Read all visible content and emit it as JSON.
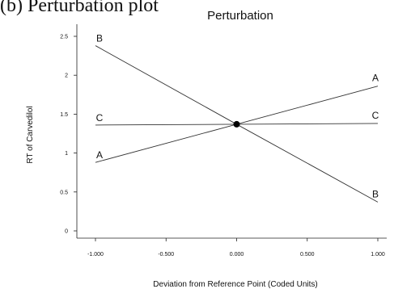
{
  "caption": "(b) Perturbation plot",
  "chart_data": {
    "type": "line",
    "title": "Perturbation",
    "xlabel": "Deviation from Reference Point (Coded Units)",
    "ylabel": "RT of Carvedilol",
    "xlim": [
      -1.0,
      1.0
    ],
    "ylim": [
      0,
      2.5
    ],
    "x_ticks": [
      "-1.000",
      "-0.500",
      "0.000",
      "0.500",
      "1.000"
    ],
    "y_ticks": [
      "0",
      "0.5",
      "1",
      "1.5",
      "2",
      "2.5"
    ],
    "grid": false,
    "reference_point": {
      "x": 0.0,
      "y": 1.37
    },
    "series": [
      {
        "name": "A",
        "x": [
          -1.0,
          0.0,
          1.0
        ],
        "values": [
          0.88,
          1.37,
          1.86
        ]
      },
      {
        "name": "B",
        "x": [
          -1.0,
          0.0,
          1.0
        ],
        "values": [
          2.38,
          1.37,
          0.37
        ]
      },
      {
        "name": "C",
        "x": [
          -1.0,
          0.0,
          1.0
        ],
        "values": [
          1.36,
          1.37,
          1.38
        ]
      }
    ]
  }
}
